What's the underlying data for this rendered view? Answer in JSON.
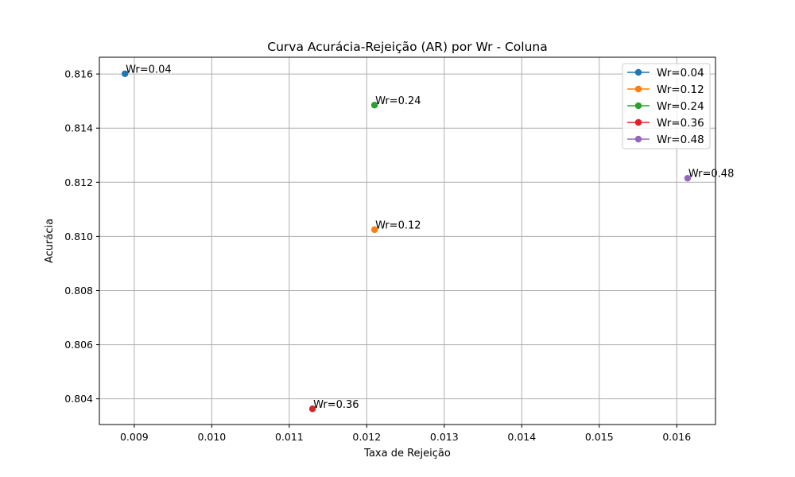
{
  "chart_data": {
    "type": "scatter",
    "title": "Curva Acurácia-Rejeição (AR) por Wr - Coluna",
    "xlabel": "Taxa de Rejeição",
    "ylabel": "Acurácia",
    "xlim": [
      0.00855,
      0.0165
    ],
    "ylim": [
      0.80305,
      0.81662
    ],
    "xticks": [
      0.009,
      0.01,
      0.011,
      0.012,
      0.013,
      0.014,
      0.015,
      0.016
    ],
    "xtick_labels": [
      "0.009",
      "0.010",
      "0.011",
      "0.012",
      "0.013",
      "0.014",
      "0.015",
      "0.016"
    ],
    "yticks": [
      0.804,
      0.806,
      0.808,
      0.81,
      0.812,
      0.814,
      0.816
    ],
    "ytick_labels": [
      "0.804",
      "0.806",
      "0.808",
      "0.810",
      "0.812",
      "0.814",
      "0.816"
    ],
    "grid": true,
    "legend_position": "top-right",
    "series": [
      {
        "name": "Wr=0.04",
        "color": "#1f77b4",
        "x": 0.00888,
        "y": 0.81601,
        "label": "Wr=0.04"
      },
      {
        "name": "Wr=0.12",
        "color": "#ff7f0e",
        "x": 0.0121,
        "y": 0.81025,
        "label": "Wr=0.12"
      },
      {
        "name": "Wr=0.24",
        "color": "#2ca02c",
        "x": 0.0121,
        "y": 0.81485,
        "label": "Wr=0.24"
      },
      {
        "name": "Wr=0.36",
        "color": "#d62728",
        "x": 0.0113,
        "y": 0.80363,
        "label": "Wr=0.36"
      },
      {
        "name": "Wr=0.48",
        "color": "#9467bd",
        "x": 0.01614,
        "y": 0.81215,
        "label": "Wr=0.48"
      }
    ]
  }
}
